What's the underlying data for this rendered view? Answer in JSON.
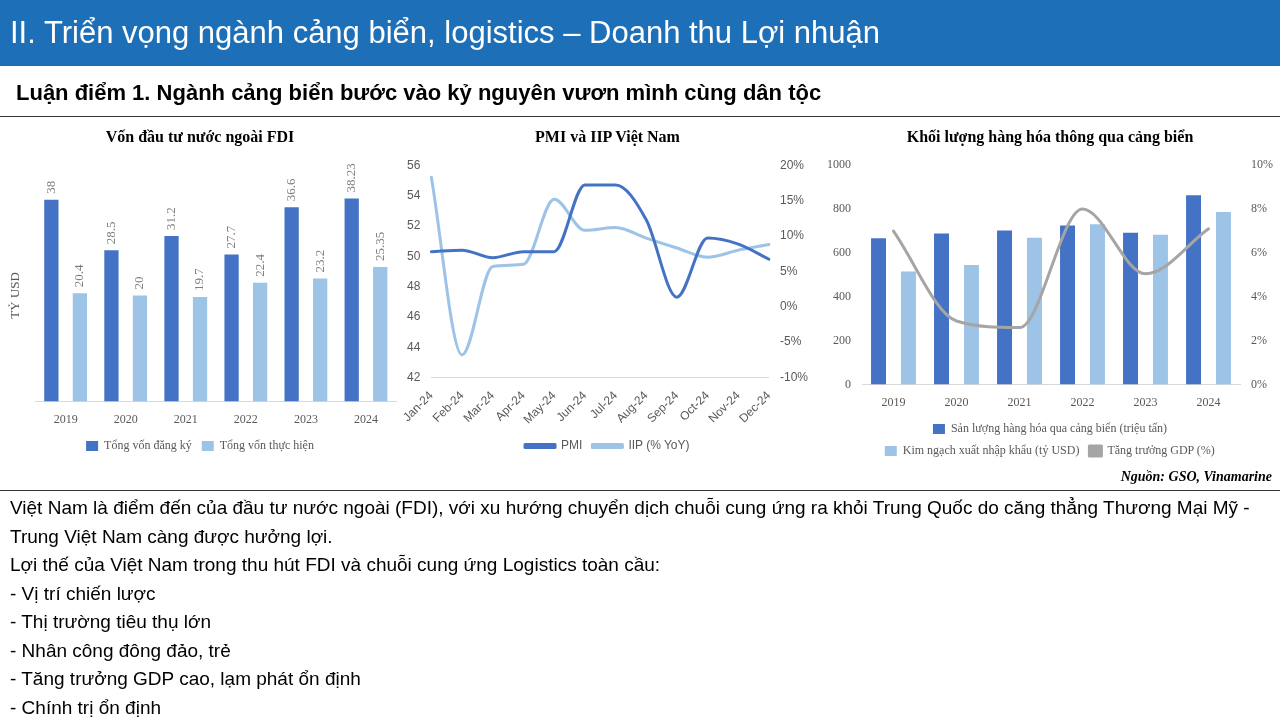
{
  "chart_data": [
    {
      "type": "other",
      "title": "II. Triển vọng ngành cảng biển, logistics – Doanh thu Lợi nhuận",
      "subtitle": "Luận điểm 1. Ngành cảng biển bước vào kỷ nguyên vươn mình cùng dân tộc"
    },
    {
      "type": "bar",
      "title": "Vốn đầu tư nước ngoài FDI",
      "ylabel": "TỶ USD",
      "categories": [
        "2019",
        "2020",
        "2021",
        "2022",
        "2023",
        "2024"
      ],
      "series": [
        {
          "name": "Tổng vốn đăng ký",
          "color": "#4472c4",
          "values": [
            38,
            28.5,
            31.2,
            27.7,
            36.6,
            38.23
          ]
        },
        {
          "name": "Tổng vốn thực hiện",
          "color": "#9dc3e6",
          "values": [
            20.4,
            20,
            19.7,
            22.4,
            23.2,
            25.35
          ]
        }
      ],
      "data_labels": true,
      "tick_labels": "x",
      "grid": false,
      "legend": "bottom"
    },
    {
      "type": "line",
      "title": "PMI và IIP Việt Nam",
      "categories": [
        "Jan-24",
        "Feb-24",
        "Mar-24",
        "Apr-24",
        "May-24",
        "Jun-24",
        "Jul-24",
        "Aug-24",
        "Sep-24",
        "Oct-24",
        "Nov-24",
        "Dec-24"
      ],
      "series": [
        {
          "name": "PMI",
          "color": "#4472c4",
          "values": [
            50.3,
            50.4,
            49.9,
            50.3,
            50.3,
            54.7,
            54.7,
            52.4,
            47.3,
            51.2,
            50.8,
            49.8
          ]
        },
        {
          "name": "IIP (% YoY)",
          "color": "#9dc3e6",
          "axis": "y2",
          "values": [
            18.3,
            -6.8,
            5.7,
            6.0,
            15.2,
            10.8,
            11.2,
            9.7,
            8.3,
            7.0,
            8.0,
            8.8
          ]
        }
      ],
      "ylim": [
        42,
        56
      ],
      "yticks": [
        42,
        44,
        46,
        48,
        50,
        52,
        54,
        56
      ],
      "y2lim": [
        -10,
        20
      ],
      "y2ticks": [
        {
          "value": -10,
          "label": "-10%"
        },
        {
          "value": -5,
          "label": "-5%"
        },
        {
          "value": 0,
          "label": "0%"
        },
        {
          "value": 5,
          "label": "5%"
        },
        {
          "value": 10,
          "label": "10%"
        },
        {
          "value": 15,
          "label": "15%"
        },
        {
          "value": 20,
          "label": "20%"
        }
      ],
      "grid": false,
      "legend": "bottom",
      "marker": "none"
    },
    {
      "type": "bar",
      "title": "Khối lượng hàng hóa thông qua cảng biển",
      "categories": [
        "2019",
        "2020",
        "2021",
        "2022",
        "2023",
        "2024"
      ],
      "series": [
        {
          "name": "Sản lượng hàng hóa qua cảng biển (triệu tấn)",
          "color": "#4472c4",
          "values": [
            667,
            689,
            702,
            725,
            692,
            863
          ]
        },
        {
          "name": "Kim ngạch xuất nhập khẩu (tỷ USD)",
          "color": "#9dc3e6",
          "values": [
            516,
            545,
            669,
            731,
            683,
            787
          ]
        },
        {
          "name": "Tăng trưởng GDP (%)",
          "type": "line",
          "color": "#a5a5a5",
          "axis": "y2",
          "values": [
            7.0,
            2.9,
            2.6,
            8.0,
            5.05,
            7.1
          ]
        }
      ],
      "ylim": [
        0,
        1000
      ],
      "yticks": [
        0,
        200,
        400,
        600,
        800,
        1000
      ],
      "y2lim": [
        0,
        10
      ],
      "y2ticks": [
        {
          "value": 0,
          "label": "0%"
        },
        {
          "value": 2,
          "label": "2%"
        },
        {
          "value": 4,
          "label": "4%"
        },
        {
          "value": 6,
          "label": "6%"
        },
        {
          "value": 8,
          "label": "8%"
        },
        {
          "value": 10,
          "label": "10%"
        }
      ],
      "grid": false,
      "legend": "bottom",
      "marker": "none",
      "annotations": [
        "Nguồn: GSO, Vinamarine"
      ]
    },
    {
      "type": "other",
      "annotations": [
        "Việt Nam là điểm đến của đầu tư nước ngoài (FDI), với xu hướng chuyển dịch chuỗi cung ứng ra khỏi Trung Quốc do căng thẳng Thương Mại Mỹ - Trung Việt Nam càng được hưởng lợi.",
        "Lợi thế của Việt Nam trong thu hút FDI và chuỗi cung ứng Logistics toàn cầu:",
        "- Vị trí chiến lược",
        "- Thị trường tiêu thụ lớn",
        "- Nhân công đông đảo, trẻ",
        "- Tăng trưởng GDP cao, lạm phát ổn định",
        "- Chính trị ổn định"
      ]
    }
  ]
}
